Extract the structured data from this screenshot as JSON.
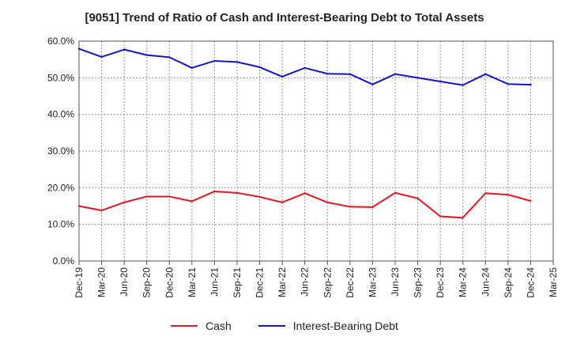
{
  "chart_data": {
    "type": "line",
    "title": "[9051]  Trend of Ratio of Cash and Interest-Bearing Debt to Total Assets",
    "xlabel": "",
    "ylabel": "",
    "ylim": [
      0,
      60
    ],
    "y_ticks": [
      "0.0%",
      "10.0%",
      "20.0%",
      "30.0%",
      "40.0%",
      "50.0%",
      "60.0%"
    ],
    "x": [
      "Dec-19",
      "Mar-20",
      "Jun-20",
      "Sep-20",
      "Dec-20",
      "Mar-21",
      "Jun-21",
      "Sep-21",
      "Dec-21",
      "Mar-22",
      "Jun-22",
      "Sep-22",
      "Dec-22",
      "Mar-23",
      "Jun-23",
      "Sep-23",
      "Dec-23",
      "Mar-24",
      "Jun-24",
      "Sep-24",
      "Dec-24",
      "Mar-25"
    ],
    "grid": true,
    "legend_position": "bottom",
    "series": [
      {
        "name": "Cash",
        "color": "#e8141e",
        "values": [
          15.0,
          13.8,
          16.0,
          17.6,
          17.6,
          16.3,
          19.0,
          18.6,
          17.5,
          16.0,
          18.5,
          16.0,
          14.8,
          14.7,
          18.6,
          17.1,
          12.2,
          11.8,
          18.5,
          18.1,
          16.4,
          null
        ]
      },
      {
        "name": "Interest-Bearing Debt",
        "color": "#1414d2",
        "values": [
          57.9,
          55.7,
          57.7,
          56.2,
          55.6,
          52.7,
          54.6,
          54.3,
          52.9,
          50.3,
          52.7,
          51.1,
          51.0,
          48.2,
          51.0,
          50.0,
          49.0,
          48.0,
          51.0,
          48.3,
          48.1,
          null
        ]
      }
    ]
  }
}
